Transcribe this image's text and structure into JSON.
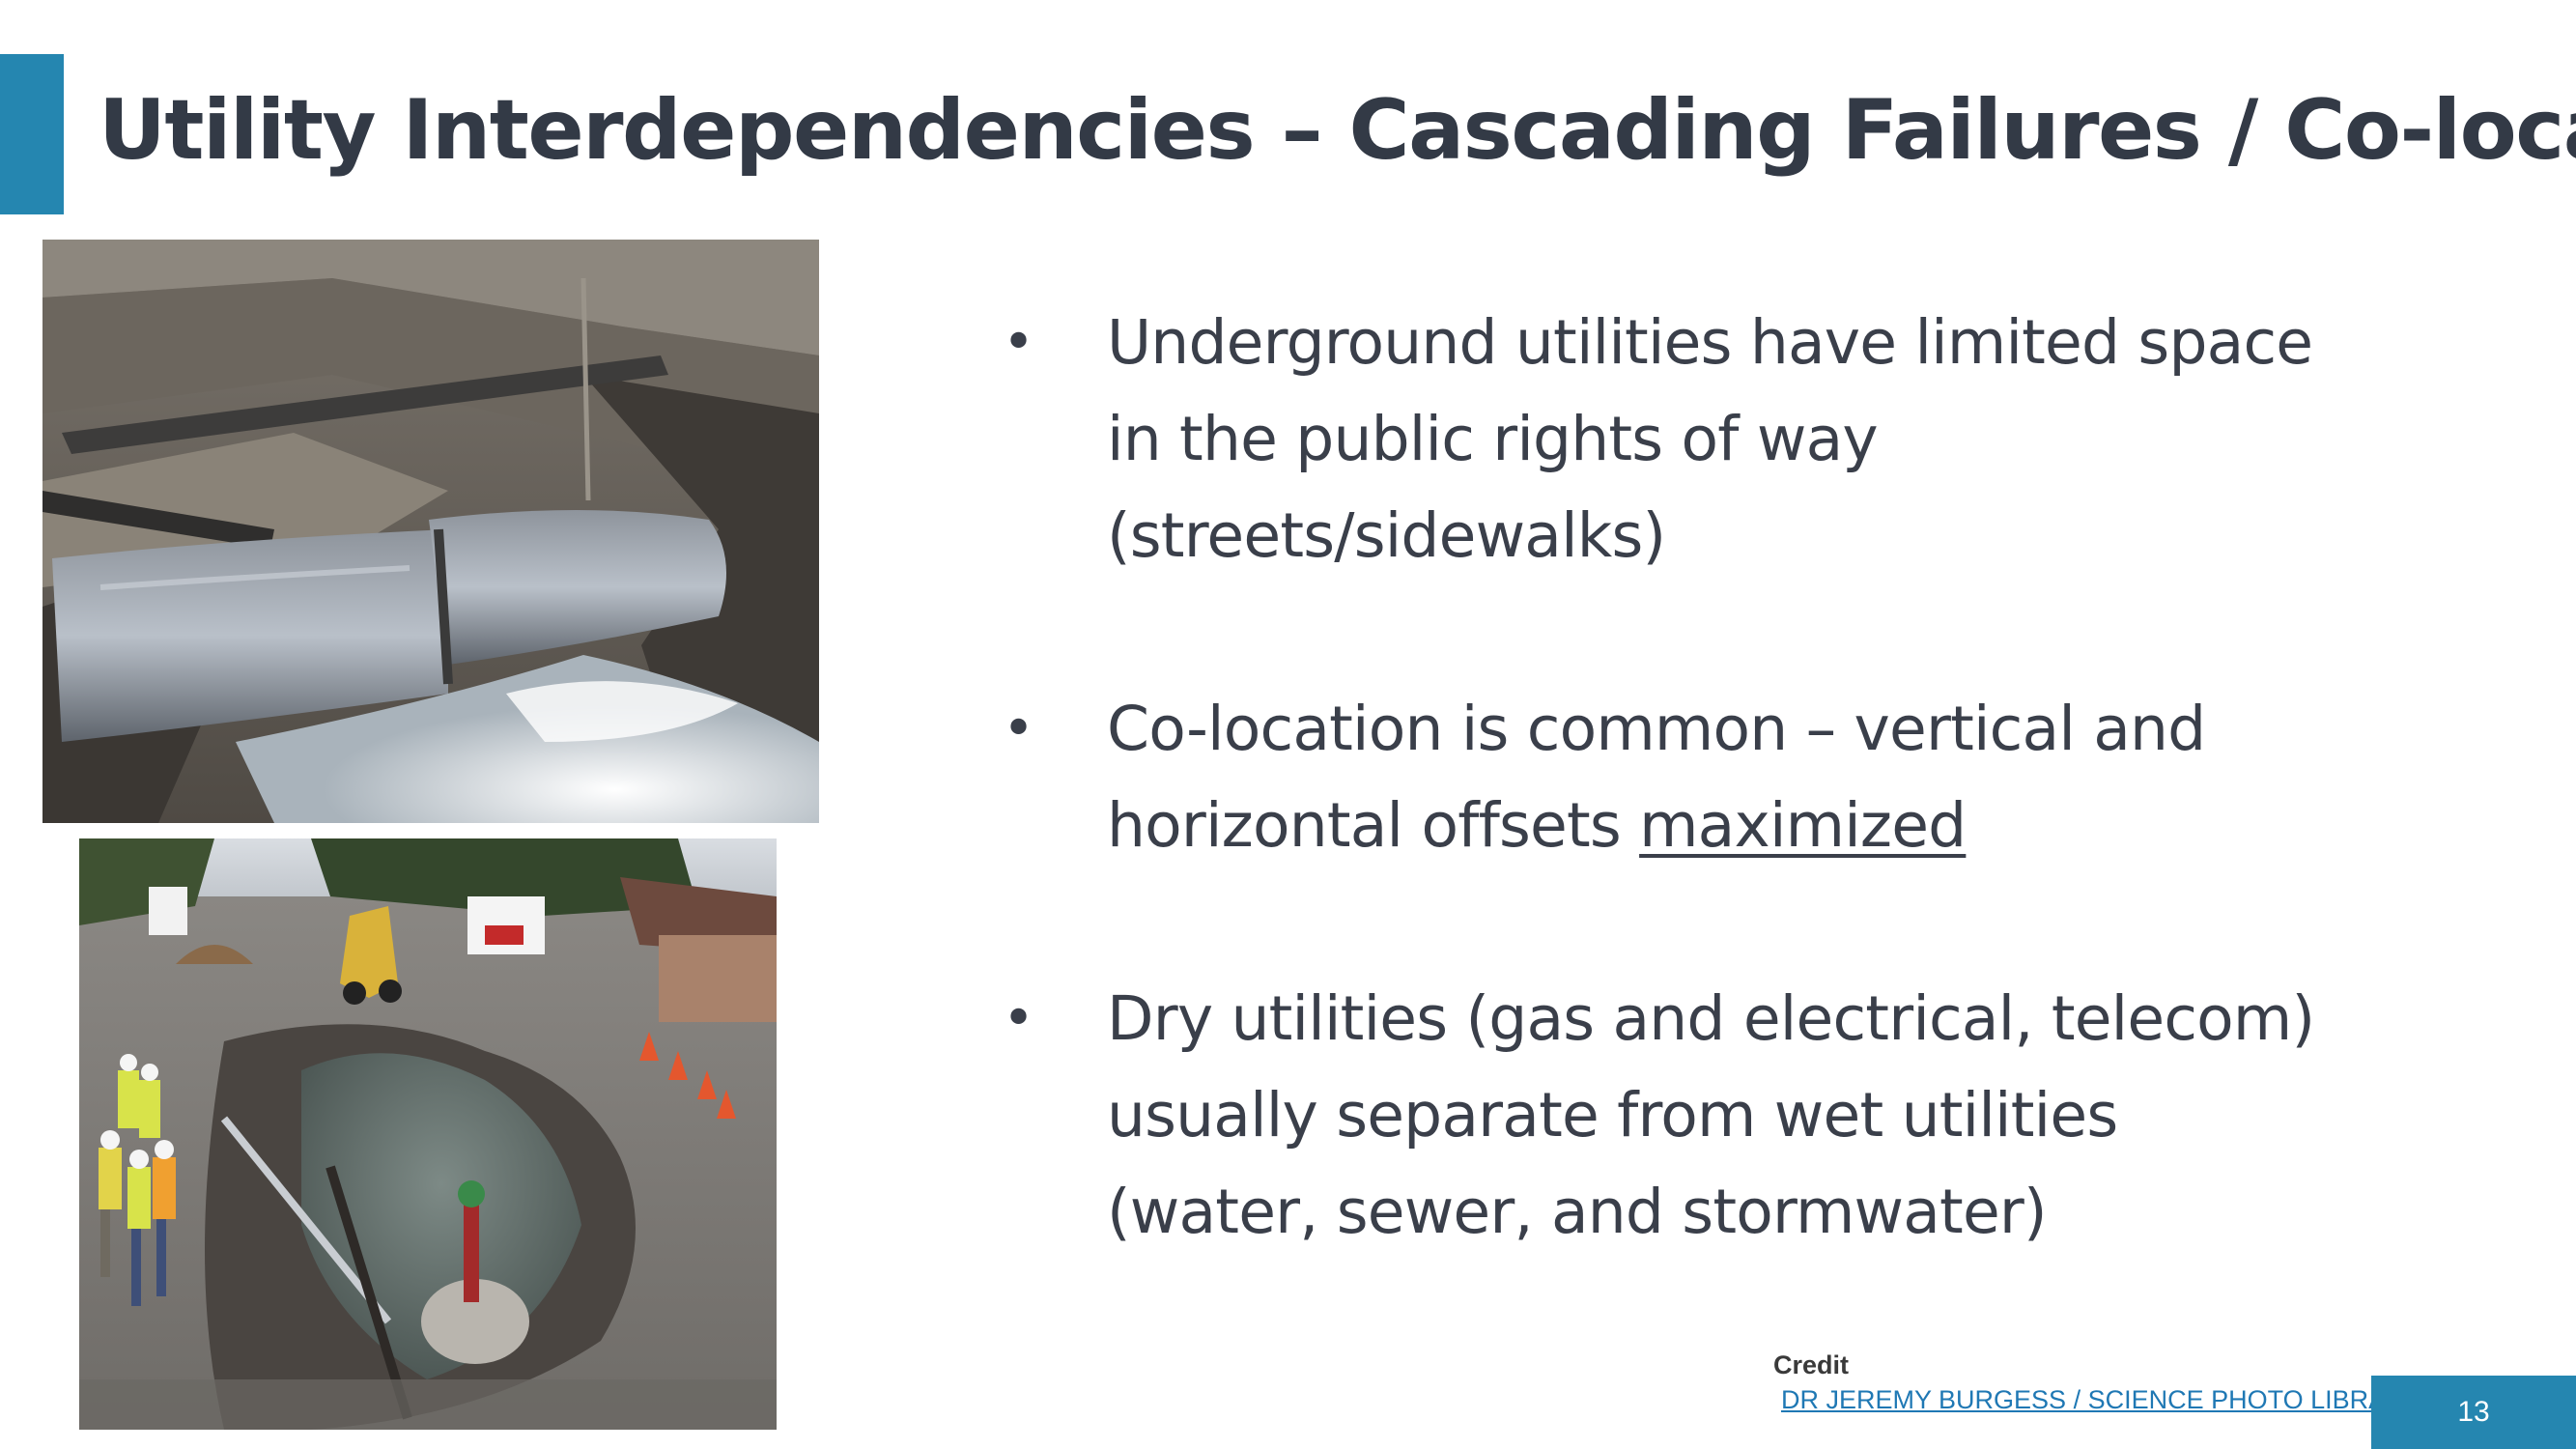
{
  "slide": {
    "title": "Utility Interdependencies – Cascading Failures / Co-location",
    "page_number": "13"
  },
  "bullets": [
    {
      "lines": [
        "Underground utilities have limited space",
        "in the public rights of way",
        "(streets/sidewalks)"
      ]
    },
    {
      "prefix": "horizontal offsets ",
      "first_line": "Co-location is common – vertical and",
      "emphasis": "maximized"
    },
    {
      "lines": [
        "Dry utilities (gas and electrical, telecom)",
        "usually separate from wet utilities",
        "(water, sewer, and stormwater)"
      ]
    }
  ],
  "bullet_symbol": "•",
  "credit": {
    "label": "Credit",
    "link_text": "DR JEREMY BURGESS / SCIENCE PHOTO LIBRARY"
  },
  "colors": {
    "accent": "#2586b0",
    "title_text": "#333a46",
    "body_text": "#3a3f4a",
    "credit_text": "#3a3a3a",
    "link": "#1f78b4"
  }
}
